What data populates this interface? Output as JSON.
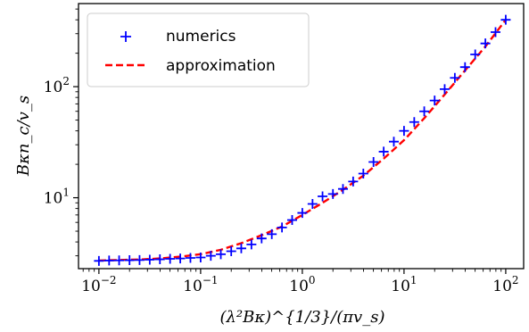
{
  "chart_data": {
    "type": "line",
    "xscale": "log",
    "yscale": "log",
    "xlim": [
      0.0063,
      150
    ],
    "ylim": [
      2.3,
      560
    ],
    "xlabel": "(λ²Bκ)^{1/3}/(πv_s)",
    "ylabel": "Bκn_c/v_s",
    "grid": false,
    "legend_position": "top-left",
    "x_ticks": [
      {
        "base": "10",
        "exp": "−2"
      },
      {
        "base": "10",
        "exp": "−1"
      },
      {
        "base": "10",
        "exp": "0"
      },
      {
        "base": "10",
        "exp": "1"
      },
      {
        "base": "10",
        "exp": "2"
      }
    ],
    "y_ticks": [
      {
        "base": "10",
        "exp": "1"
      },
      {
        "base": "10",
        "exp": "2"
      }
    ],
    "series": [
      {
        "name": "numerics",
        "style": "markers",
        "marker": "plus",
        "color": "#0000ff",
        "x": [
          0.01,
          0.0126,
          0.0158,
          0.02,
          0.0251,
          0.0316,
          0.0398,
          0.0501,
          0.0631,
          0.0794,
          0.1,
          0.126,
          0.158,
          0.2,
          0.251,
          0.316,
          0.398,
          0.501,
          0.631,
          0.794,
          1.0,
          1.26,
          1.58,
          2.0,
          2.51,
          3.16,
          3.98,
          5.01,
          6.31,
          7.94,
          10.0,
          12.6,
          15.8,
          20.0,
          25.1,
          31.6,
          39.8,
          50.1,
          63.1,
          79.4,
          100.0
        ],
        "y": [
          2.7,
          2.72,
          2.73,
          2.74,
          2.75,
          2.77,
          2.79,
          2.82,
          2.84,
          2.87,
          2.9,
          3.0,
          3.1,
          3.3,
          3.5,
          3.8,
          4.3,
          4.7,
          5.4,
          6.3,
          7.3,
          8.8,
          10.3,
          10.8,
          12.0,
          14.0,
          16.5,
          21.0,
          26.0,
          32.0,
          40.0,
          48.0,
          60.0,
          75.0,
          95.0,
          120.0,
          150.0,
          195.0,
          245.0,
          310.0,
          400.0
        ]
      },
      {
        "name": "approximation",
        "style": "dashed",
        "color": "#ff0000",
        "x": [
          0.01,
          0.0158,
          0.0251,
          0.0398,
          0.0631,
          0.1,
          0.158,
          0.251,
          0.398,
          0.631,
          1.0,
          1.58,
          2.51,
          3.98,
          6.31,
          10.0,
          15.8,
          25.1,
          39.8,
          63.1,
          100.0
        ],
        "y": [
          2.72,
          2.75,
          2.78,
          2.84,
          2.95,
          3.1,
          3.4,
          3.9,
          4.6,
          5.5,
          7.0,
          9.0,
          11.8,
          15.8,
          22.5,
          33.0,
          52.0,
          85.0,
          140.0,
          230.0,
          400.0
        ]
      }
    ]
  }
}
